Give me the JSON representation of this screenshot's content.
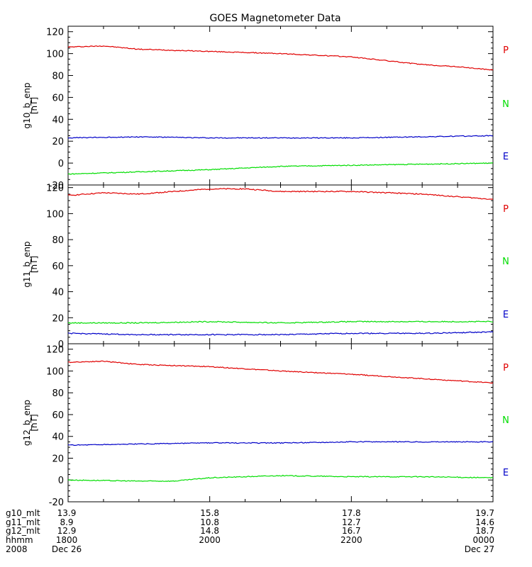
{
  "title": "GOES Magnetometer Data",
  "colors": {
    "P": "#e00000",
    "N": "#00dd00",
    "E": "#0000c8",
    "axis": "#000000"
  },
  "chart_data": [
    {
      "type": "line",
      "ylabel": "g10_b_enp",
      "yunit": "[nT]",
      "ylim": [
        -20,
        125
      ],
      "yticks": [
        -20,
        0,
        20,
        40,
        60,
        80,
        100,
        120
      ],
      "xlim": [
        0,
        360
      ],
      "series": [
        {
          "name": "P",
          "color": "#e00000",
          "x": [
            0,
            30,
            60,
            120,
            180,
            240,
            300,
            330,
            360
          ],
          "y": [
            106,
            107,
            104,
            102,
            100,
            97,
            90,
            88,
            85
          ]
        },
        {
          "name": "N",
          "color": "#00dd00",
          "x": [
            0,
            60,
            120,
            180,
            240,
            300,
            360
          ],
          "y": [
            -10,
            -8,
            -6,
            -3,
            -2,
            -1,
            0
          ]
        },
        {
          "name": "E",
          "color": "#0000c8",
          "x": [
            0,
            60,
            120,
            180,
            240,
            300,
            360
          ],
          "y": [
            23,
            24,
            23,
            23,
            23,
            24,
            25
          ]
        }
      ]
    },
    {
      "type": "line",
      "ylabel": "g11_b_enp",
      "yunit": "[nT]",
      "ylim": [
        0,
        122
      ],
      "yticks": [
        0,
        20,
        40,
        60,
        80,
        100,
        120
      ],
      "xlim": [
        0,
        360
      ],
      "series": [
        {
          "name": "P",
          "color": "#e00000",
          "x": [
            0,
            30,
            60,
            90,
            120,
            150,
            180,
            240,
            300,
            360
          ],
          "y": [
            114,
            116,
            115,
            117,
            119,
            119,
            117,
            117,
            115,
            111
          ]
        },
        {
          "name": "N",
          "color": "#00dd00",
          "x": [
            0,
            60,
            120,
            180,
            240,
            300,
            360
          ],
          "y": [
            16,
            16,
            17,
            16,
            17,
            17,
            17
          ]
        },
        {
          "name": "E",
          "color": "#0000c8",
          "x": [
            0,
            60,
            120,
            180,
            240,
            300,
            360
          ],
          "y": [
            8,
            7,
            7,
            7,
            8,
            8,
            9
          ]
        }
      ]
    },
    {
      "type": "line",
      "ylabel": "g12_b_enp",
      "yunit": "[nT]",
      "ylim": [
        -20,
        125
      ],
      "yticks": [
        -20,
        0,
        20,
        40,
        60,
        80,
        100,
        120
      ],
      "xlim": [
        0,
        360
      ],
      "series": [
        {
          "name": "P",
          "color": "#e00000",
          "x": [
            0,
            30,
            60,
            120,
            150,
            180,
            240,
            300,
            360
          ],
          "y": [
            108,
            109,
            106,
            104,
            102,
            100,
            97,
            93,
            89
          ]
        },
        {
          "name": "N",
          "color": "#00dd00",
          "x": [
            0,
            60,
            90,
            120,
            150,
            180,
            240,
            300,
            360
          ],
          "y": [
            0,
            -1,
            -1,
            2,
            3,
            4,
            3,
            3,
            2
          ]
        },
        {
          "name": "E",
          "color": "#0000c8",
          "x": [
            0,
            60,
            120,
            180,
            240,
            300,
            360
          ],
          "y": [
            32,
            33,
            34,
            34,
            35,
            35,
            35
          ]
        }
      ]
    }
  ],
  "time_axis": {
    "ticks": [
      0,
      120,
      240,
      360
    ],
    "rows": [
      {
        "label": "g10_mlt",
        "values": [
          "13.9",
          "15.8",
          "17.8",
          "19.7"
        ]
      },
      {
        "label": "g11_mlt",
        "values": [
          "8.9",
          "10.8",
          "12.7",
          "14.6"
        ]
      },
      {
        "label": "g12_mlt",
        "values": [
          "12.9",
          "14.8",
          "16.7",
          "18.7"
        ]
      },
      {
        "label": "hhmm",
        "values": [
          "1800",
          "2000",
          "2200",
          "0000"
        ]
      },
      {
        "label": "2008",
        "values": [
          "Dec 26",
          "",
          "",
          "Dec 27"
        ]
      }
    ]
  }
}
